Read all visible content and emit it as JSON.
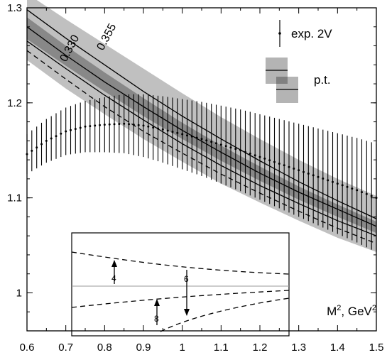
{
  "chart_data": {
    "type": "line",
    "xlabel_base": "M",
    "xlabel_sup": "2",
    "xlabel_sep": ", ",
    "xlabel_unit_base": "GeV",
    "xlabel_unit_sup": "2",
    "xlim": [
      0.6,
      1.5
    ],
    "ylim": [
      0.96,
      1.3
    ],
    "x_ticks": [
      "0.6",
      "0.7",
      "0.8",
      "0.9",
      "1",
      "1.1",
      "1.2",
      "1.3",
      "1.4",
      "1.5"
    ],
    "y_ticks": [
      "1",
      "1.1",
      "1.2",
      "1.3"
    ],
    "legend": {
      "exp_label": "exp. 2V",
      "pt_label": "p.t."
    },
    "curve_labels": [
      "0.330",
      "0.355"
    ],
    "experimental": {
      "x": [
        0.6,
        0.65,
        0.7,
        0.75,
        0.8,
        0.85,
        0.9,
        0.95,
        1.0,
        1.05,
        1.1,
        1.15,
        1.2,
        1.25,
        1.3,
        1.35,
        1.4,
        1.45,
        1.5
      ],
      "y": [
        1.146,
        1.16,
        1.17,
        1.175,
        1.177,
        1.178,
        1.176,
        1.172,
        1.167,
        1.162,
        1.156,
        1.15,
        1.143,
        1.136,
        1.129,
        1.122,
        1.115,
        1.108,
        1.1
      ],
      "yerr": [
        0.021,
        0.023,
        0.025,
        0.027,
        0.029,
        0.031,
        0.033,
        0.035,
        0.037,
        0.039,
        0.041,
        0.043,
        0.045,
        0.047,
        0.049,
        0.051,
        0.053,
        0.055,
        0.057
      ]
    },
    "pt": {
      "x": [
        0.6,
        0.7,
        0.8,
        0.9,
        1.0,
        1.1,
        1.2,
        1.3,
        1.4,
        1.5
      ],
      "curve_330": [
        1.28,
        1.25,
        1.222,
        1.196,
        1.171,
        1.148,
        1.126,
        1.106,
        1.088,
        1.07
      ],
      "curve_355": [
        1.298,
        1.268,
        1.24,
        1.212,
        1.186,
        1.162,
        1.139,
        1.117,
        1.097,
        1.078
      ],
      "curve_305": [
        1.265,
        1.236,
        1.208,
        1.182,
        1.157,
        1.134,
        1.113,
        1.094,
        1.076,
        1.06
      ],
      "dashed": [
        1.255,
        1.225,
        1.196,
        1.17,
        1.147,
        1.125,
        1.105,
        1.086,
        1.068,
        1.052
      ],
      "inner_band": {
        "upper": [
          1.29,
          1.26,
          1.232,
          1.205,
          1.179,
          1.155,
          1.133,
          1.112,
          1.093,
          1.075
        ],
        "lower": [
          1.267,
          1.239,
          1.212,
          1.186,
          1.162,
          1.139,
          1.118,
          1.098,
          1.08,
          1.063
        ]
      },
      "outer_band": {
        "upper": [
          1.315,
          1.288,
          1.262,
          1.236,
          1.21,
          1.185,
          1.162,
          1.14,
          1.12,
          1.102
        ],
        "lower": [
          1.245,
          1.215,
          1.188,
          1.162,
          1.138,
          1.115,
          1.095,
          1.076,
          1.058,
          1.043
        ]
      }
    },
    "inset": {
      "arrow_labels": [
        "4",
        "6",
        "8"
      ]
    }
  }
}
